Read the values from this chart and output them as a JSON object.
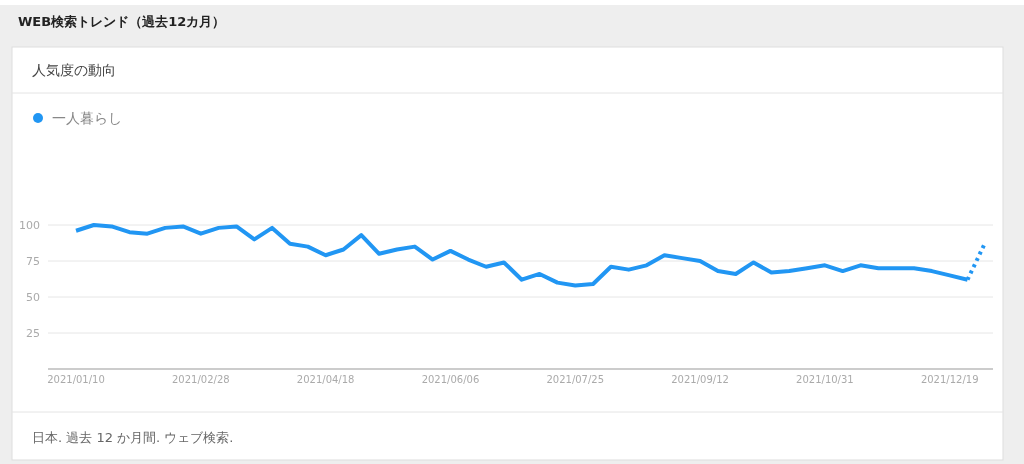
{
  "chart_data": {
    "type": "line",
    "title": "WEB検索トレンド（過去12カ月）",
    "subtitle": "人気度の動向",
    "annotations": [
      "日本. 過去 12 か月間. ウェブ検索."
    ],
    "x": [
      "2021-01-10",
      "2021-01-17",
      "2021-01-24",
      "2021-01-31",
      "2021-02-07",
      "2021-02-14",
      "2021-02-21",
      "2021-02-28",
      "2021-03-07",
      "2021-03-14",
      "2021-03-21",
      "2021-03-28",
      "2021-04-04",
      "2021-04-11",
      "2021-04-18",
      "2021-04-25",
      "2021-05-02",
      "2021-05-09",
      "2021-05-16",
      "2021-05-23",
      "2021-05-30",
      "2021-06-06",
      "2021-06-13",
      "2021-06-20",
      "2021-06-27",
      "2021-07-04",
      "2021-07-11",
      "2021-07-18",
      "2021-07-25",
      "2021-08-01",
      "2021-08-08",
      "2021-08-15",
      "2021-08-22",
      "2021-08-29",
      "2021-09-05",
      "2021-09-12",
      "2021-09-19",
      "2021-09-26",
      "2021-10-03",
      "2021-10-10",
      "2021-10-17",
      "2021-10-24",
      "2021-10-31",
      "2021-11-07",
      "2021-11-14",
      "2021-11-21",
      "2021-11-28",
      "2021-12-05",
      "2021-12-12",
      "2021-12-19",
      "2021-12-26",
      "2022-01-02"
    ],
    "series": [
      {
        "name": "一人暮らし",
        "color": "#2196f3",
        "line_style": "solid",
        "values": [
          96,
          100,
          99,
          95,
          94,
          98,
          99,
          94,
          98,
          99,
          90,
          98,
          87,
          85,
          79,
          83,
          93,
          80,
          83,
          85,
          76,
          82,
          76,
          71,
          74,
          62,
          66,
          60,
          58,
          59,
          71,
          69,
          72,
          79,
          77,
          75,
          68,
          66,
          74,
          67,
          68,
          70,
          72,
          68,
          72,
          70,
          70,
          70,
          68,
          65,
          62,
          null
        ]
      },
      {
        "color": "#2196f3",
        "line_style": "dotted",
        "values": [
          null,
          null,
          null,
          null,
          null,
          null,
          null,
          null,
          null,
          null,
          null,
          null,
          null,
          null,
          null,
          null,
          null,
          null,
          null,
          null,
          null,
          null,
          null,
          null,
          null,
          null,
          null,
          null,
          null,
          null,
          null,
          null,
          null,
          null,
          null,
          null,
          null,
          null,
          null,
          null,
          null,
          null,
          null,
          null,
          null,
          null,
          null,
          null,
          null,
          null,
          62,
          88
        ]
      }
    ],
    "xlim": [
      "2020-12-30",
      "2022-01-05"
    ],
    "xticks": [
      {
        "value": "2021-01-10",
        "label": "2021/01/10"
      },
      {
        "value": "2021-02-28",
        "label": "2021/02/28"
      },
      {
        "value": "2021-04-18",
        "label": "2021/04/18"
      },
      {
        "value": "2021-06-06",
        "label": "2021/06/06"
      },
      {
        "value": "2021-07-25",
        "label": "2021/07/25"
      },
      {
        "value": "2021-09-12",
        "label": "2021/09/12"
      },
      {
        "value": "2021-10-31",
        "label": "2021/10/31"
      },
      {
        "value": "2021-12-19",
        "label": "2021/12/19"
      }
    ],
    "ylim": [
      0,
      100
    ],
    "yticks": [
      25,
      50,
      75,
      100
    ],
    "grid": "y",
    "legend": "top left",
    "marker": "none"
  }
}
